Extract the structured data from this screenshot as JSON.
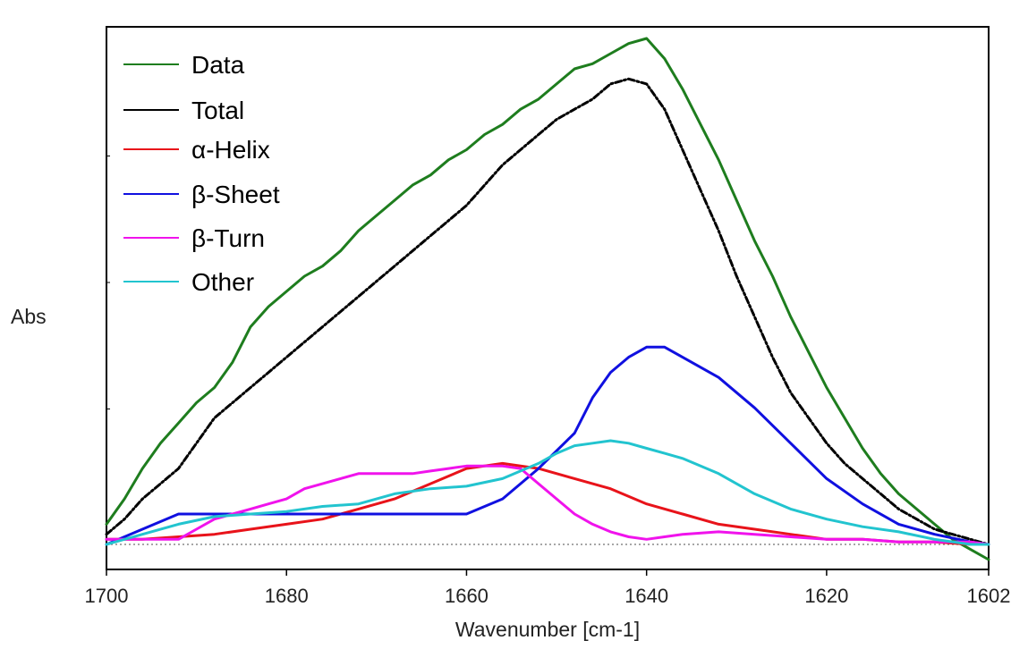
{
  "chart_data": {
    "type": "line",
    "title": "",
    "xlabel": "Wavenumber [cm-1]",
    "ylabel": "Abs",
    "xlim": [
      1700,
      1602
    ],
    "ylim": [
      0,
      1.0
    ],
    "xticks": [
      1700,
      1680,
      1660,
      1640,
      1620,
      1602
    ],
    "grid": false,
    "legend_position": "top-left",
    "baseline": {
      "y": 0,
      "style": "dotted",
      "color": "#888888"
    },
    "series": [
      {
        "name": "Data",
        "color": "#1e7d1e",
        "dash": "solid",
        "x": [
          1700,
          1698,
          1696,
          1694,
          1692,
          1690,
          1688,
          1686,
          1684,
          1682,
          1680,
          1678,
          1676,
          1674,
          1672,
          1670,
          1668,
          1666,
          1664,
          1662,
          1660,
          1658,
          1656,
          1654,
          1652,
          1650,
          1648,
          1646,
          1644,
          1642,
          1640,
          1638,
          1636,
          1634,
          1632,
          1630,
          1628,
          1626,
          1624,
          1622,
          1620,
          1618,
          1616,
          1614,
          1612,
          1610,
          1608,
          1606,
          1604,
          1602
        ],
        "y": [
          0.04,
          0.09,
          0.15,
          0.2,
          0.24,
          0.28,
          0.31,
          0.36,
          0.43,
          0.47,
          0.5,
          0.53,
          0.55,
          0.58,
          0.62,
          0.65,
          0.68,
          0.71,
          0.73,
          0.76,
          0.78,
          0.81,
          0.83,
          0.86,
          0.88,
          0.91,
          0.94,
          0.95,
          0.97,
          0.99,
          1.0,
          0.96,
          0.9,
          0.83,
          0.76,
          0.68,
          0.6,
          0.53,
          0.45,
          0.38,
          0.31,
          0.25,
          0.19,
          0.14,
          0.1,
          0.07,
          0.04,
          0.01,
          -0.01,
          -0.03
        ]
      },
      {
        "name": "Total",
        "color": "#000000",
        "dash": "dashdot",
        "x": [
          1700,
          1698,
          1696,
          1694,
          1692,
          1690,
          1688,
          1686,
          1684,
          1682,
          1680,
          1678,
          1676,
          1674,
          1672,
          1670,
          1668,
          1666,
          1664,
          1662,
          1660,
          1658,
          1656,
          1654,
          1652,
          1650,
          1648,
          1646,
          1644,
          1642,
          1640,
          1638,
          1636,
          1634,
          1632,
          1630,
          1628,
          1626,
          1624,
          1622,
          1620,
          1618,
          1616,
          1614,
          1612,
          1610,
          1608,
          1606,
          1604,
          1602
        ],
        "y": [
          0.02,
          0.05,
          0.09,
          0.12,
          0.15,
          0.2,
          0.25,
          0.28,
          0.31,
          0.34,
          0.37,
          0.4,
          0.43,
          0.46,
          0.49,
          0.52,
          0.55,
          0.58,
          0.61,
          0.64,
          0.67,
          0.71,
          0.75,
          0.78,
          0.81,
          0.84,
          0.86,
          0.88,
          0.91,
          0.92,
          0.91,
          0.86,
          0.78,
          0.7,
          0.62,
          0.53,
          0.45,
          0.37,
          0.3,
          0.25,
          0.2,
          0.16,
          0.13,
          0.1,
          0.07,
          0.05,
          0.03,
          0.02,
          0.01,
          0.0
        ]
      },
      {
        "name": "α-Helix",
        "color": "#e8131a",
        "dash": "solid",
        "x": [
          1700,
          1696,
          1692,
          1688,
          1684,
          1680,
          1676,
          1672,
          1668,
          1664,
          1660,
          1656,
          1652,
          1648,
          1644,
          1640,
          1636,
          1632,
          1628,
          1624,
          1620,
          1616,
          1612,
          1608,
          1604,
          1602
        ],
        "y": [
          0.01,
          0.01,
          0.015,
          0.02,
          0.03,
          0.04,
          0.05,
          0.07,
          0.09,
          0.12,
          0.15,
          0.16,
          0.15,
          0.13,
          0.11,
          0.08,
          0.06,
          0.04,
          0.03,
          0.02,
          0.01,
          0.01,
          0.005,
          0.005,
          0.0,
          0.0
        ]
      },
      {
        "name": "β-Sheet",
        "color": "#1010e0",
        "dash": "solid",
        "x": [
          1700,
          1696,
          1692,
          1688,
          1684,
          1680,
          1676,
          1672,
          1668,
          1664,
          1660,
          1656,
          1652,
          1648,
          1646,
          1644,
          1642,
          1640,
          1638,
          1636,
          1632,
          1628,
          1624,
          1620,
          1616,
          1612,
          1608,
          1604,
          1602
        ],
        "y": [
          0.0,
          0.03,
          0.06,
          0.06,
          0.06,
          0.06,
          0.06,
          0.06,
          0.06,
          0.06,
          0.06,
          0.09,
          0.15,
          0.22,
          0.29,
          0.34,
          0.37,
          0.39,
          0.39,
          0.37,
          0.33,
          0.27,
          0.2,
          0.13,
          0.08,
          0.04,
          0.02,
          0.005,
          0.0
        ]
      },
      {
        "name": "β-Turn",
        "color": "#f013ec",
        "dash": "solid",
        "x": [
          1700,
          1696,
          1692,
          1690,
          1688,
          1686,
          1684,
          1682,
          1680,
          1678,
          1676,
          1674,
          1672,
          1670,
          1668,
          1666,
          1664,
          1662,
          1660,
          1658,
          1656,
          1654,
          1652,
          1650,
          1648,
          1646,
          1644,
          1642,
          1640,
          1638,
          1636,
          1632,
          1628,
          1624,
          1620,
          1616,
          1612,
          1608,
          1604,
          1602
        ],
        "y": [
          0.01,
          0.01,
          0.01,
          0.03,
          0.05,
          0.06,
          0.07,
          0.08,
          0.09,
          0.11,
          0.12,
          0.13,
          0.14,
          0.14,
          0.14,
          0.14,
          0.145,
          0.15,
          0.155,
          0.155,
          0.155,
          0.15,
          0.12,
          0.09,
          0.06,
          0.04,
          0.025,
          0.015,
          0.01,
          0.015,
          0.02,
          0.025,
          0.02,
          0.015,
          0.01,
          0.01,
          0.005,
          0.005,
          0.005,
          0.0
        ]
      },
      {
        "name": "Other",
        "color": "#22c4cf",
        "dash": "solid",
        "x": [
          1700,
          1696,
          1692,
          1688,
          1684,
          1680,
          1676,
          1672,
          1668,
          1664,
          1660,
          1656,
          1652,
          1650,
          1648,
          1646,
          1644,
          1642,
          1640,
          1638,
          1636,
          1632,
          1628,
          1624,
          1620,
          1616,
          1612,
          1608,
          1604,
          1602
        ],
        "y": [
          0.0,
          0.02,
          0.04,
          0.055,
          0.06,
          0.065,
          0.075,
          0.08,
          0.1,
          0.11,
          0.115,
          0.13,
          0.16,
          0.18,
          0.195,
          0.2,
          0.205,
          0.2,
          0.19,
          0.18,
          0.17,
          0.14,
          0.1,
          0.07,
          0.05,
          0.035,
          0.025,
          0.01,
          0.0,
          0.0
        ]
      }
    ]
  }
}
